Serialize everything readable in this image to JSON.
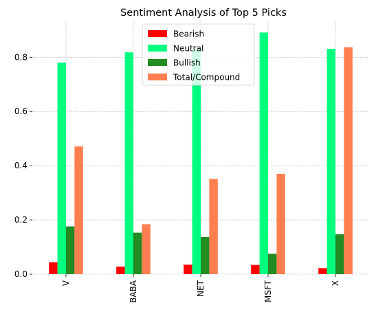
{
  "chart_data": {
    "type": "bar",
    "title": "Sentiment Analysis of Top 5 Picks",
    "xlabel": "",
    "ylabel": "",
    "categories": [
      "V",
      "BABA",
      "NET",
      "MSFT",
      "X"
    ],
    "series": [
      {
        "name": "Bearish",
        "color": "#ff0000",
        "values": [
          0.044,
          0.028,
          0.035,
          0.034,
          0.022
        ]
      },
      {
        "name": "Neutral",
        "color": "#00ff7f",
        "values": [
          0.78,
          0.818,
          0.829,
          0.891,
          0.831
        ]
      },
      {
        "name": "Bullish",
        "color": "#228b22",
        "values": [
          0.176,
          0.153,
          0.137,
          0.075,
          0.147
        ]
      },
      {
        "name": "Total/Compound",
        "color": "#ff7f50",
        "values": [
          0.471,
          0.184,
          0.351,
          0.37,
          0.837
        ]
      }
    ],
    "yticks": [
      "0.0",
      "0.2",
      "0.4",
      "0.6",
      "0.8"
    ],
    "ylim": [
      0,
      0.935
    ],
    "grid": true,
    "legend_position": "top-center"
  }
}
